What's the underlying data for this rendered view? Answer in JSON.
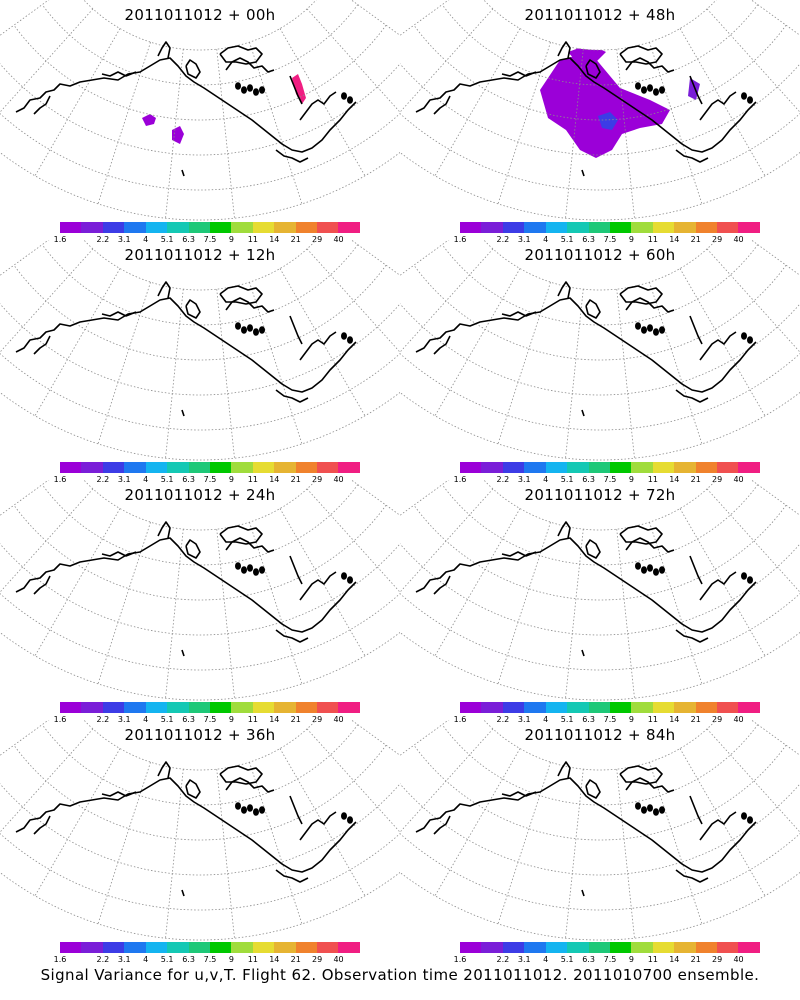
{
  "panels": [
    {
      "title": "2011011012 + 00h"
    },
    {
      "title": "2011011012 + 48h"
    },
    {
      "title": "2011011012 + 12h"
    },
    {
      "title": "2011011012 + 60h"
    },
    {
      "title": "2011011012 + 24h"
    },
    {
      "title": "2011011012 + 72h"
    },
    {
      "title": "2011011012 + 36h"
    },
    {
      "title": "2011011012 + 84h"
    }
  ],
  "colorbar": {
    "labels": [
      "1.6",
      "2.2",
      "3.1",
      "4",
      "5.1",
      "6.3",
      "7.5",
      "9",
      "11",
      "14",
      "21",
      "29",
      "40"
    ],
    "colors": [
      "#9b00d8",
      "#7a1ed8",
      "#3c3ce6",
      "#1e78f0",
      "#14b4f0",
      "#14c8b4",
      "#1ec878",
      "#00c800",
      "#a0dc3c",
      "#e6dc32",
      "#e6b432",
      "#f0822d",
      "#f05050",
      "#f01e82"
    ]
  },
  "caption": "Signal Variance for u,v,T. Flight 62. Observation time 2011011012. 2011010700 ensemble."
}
